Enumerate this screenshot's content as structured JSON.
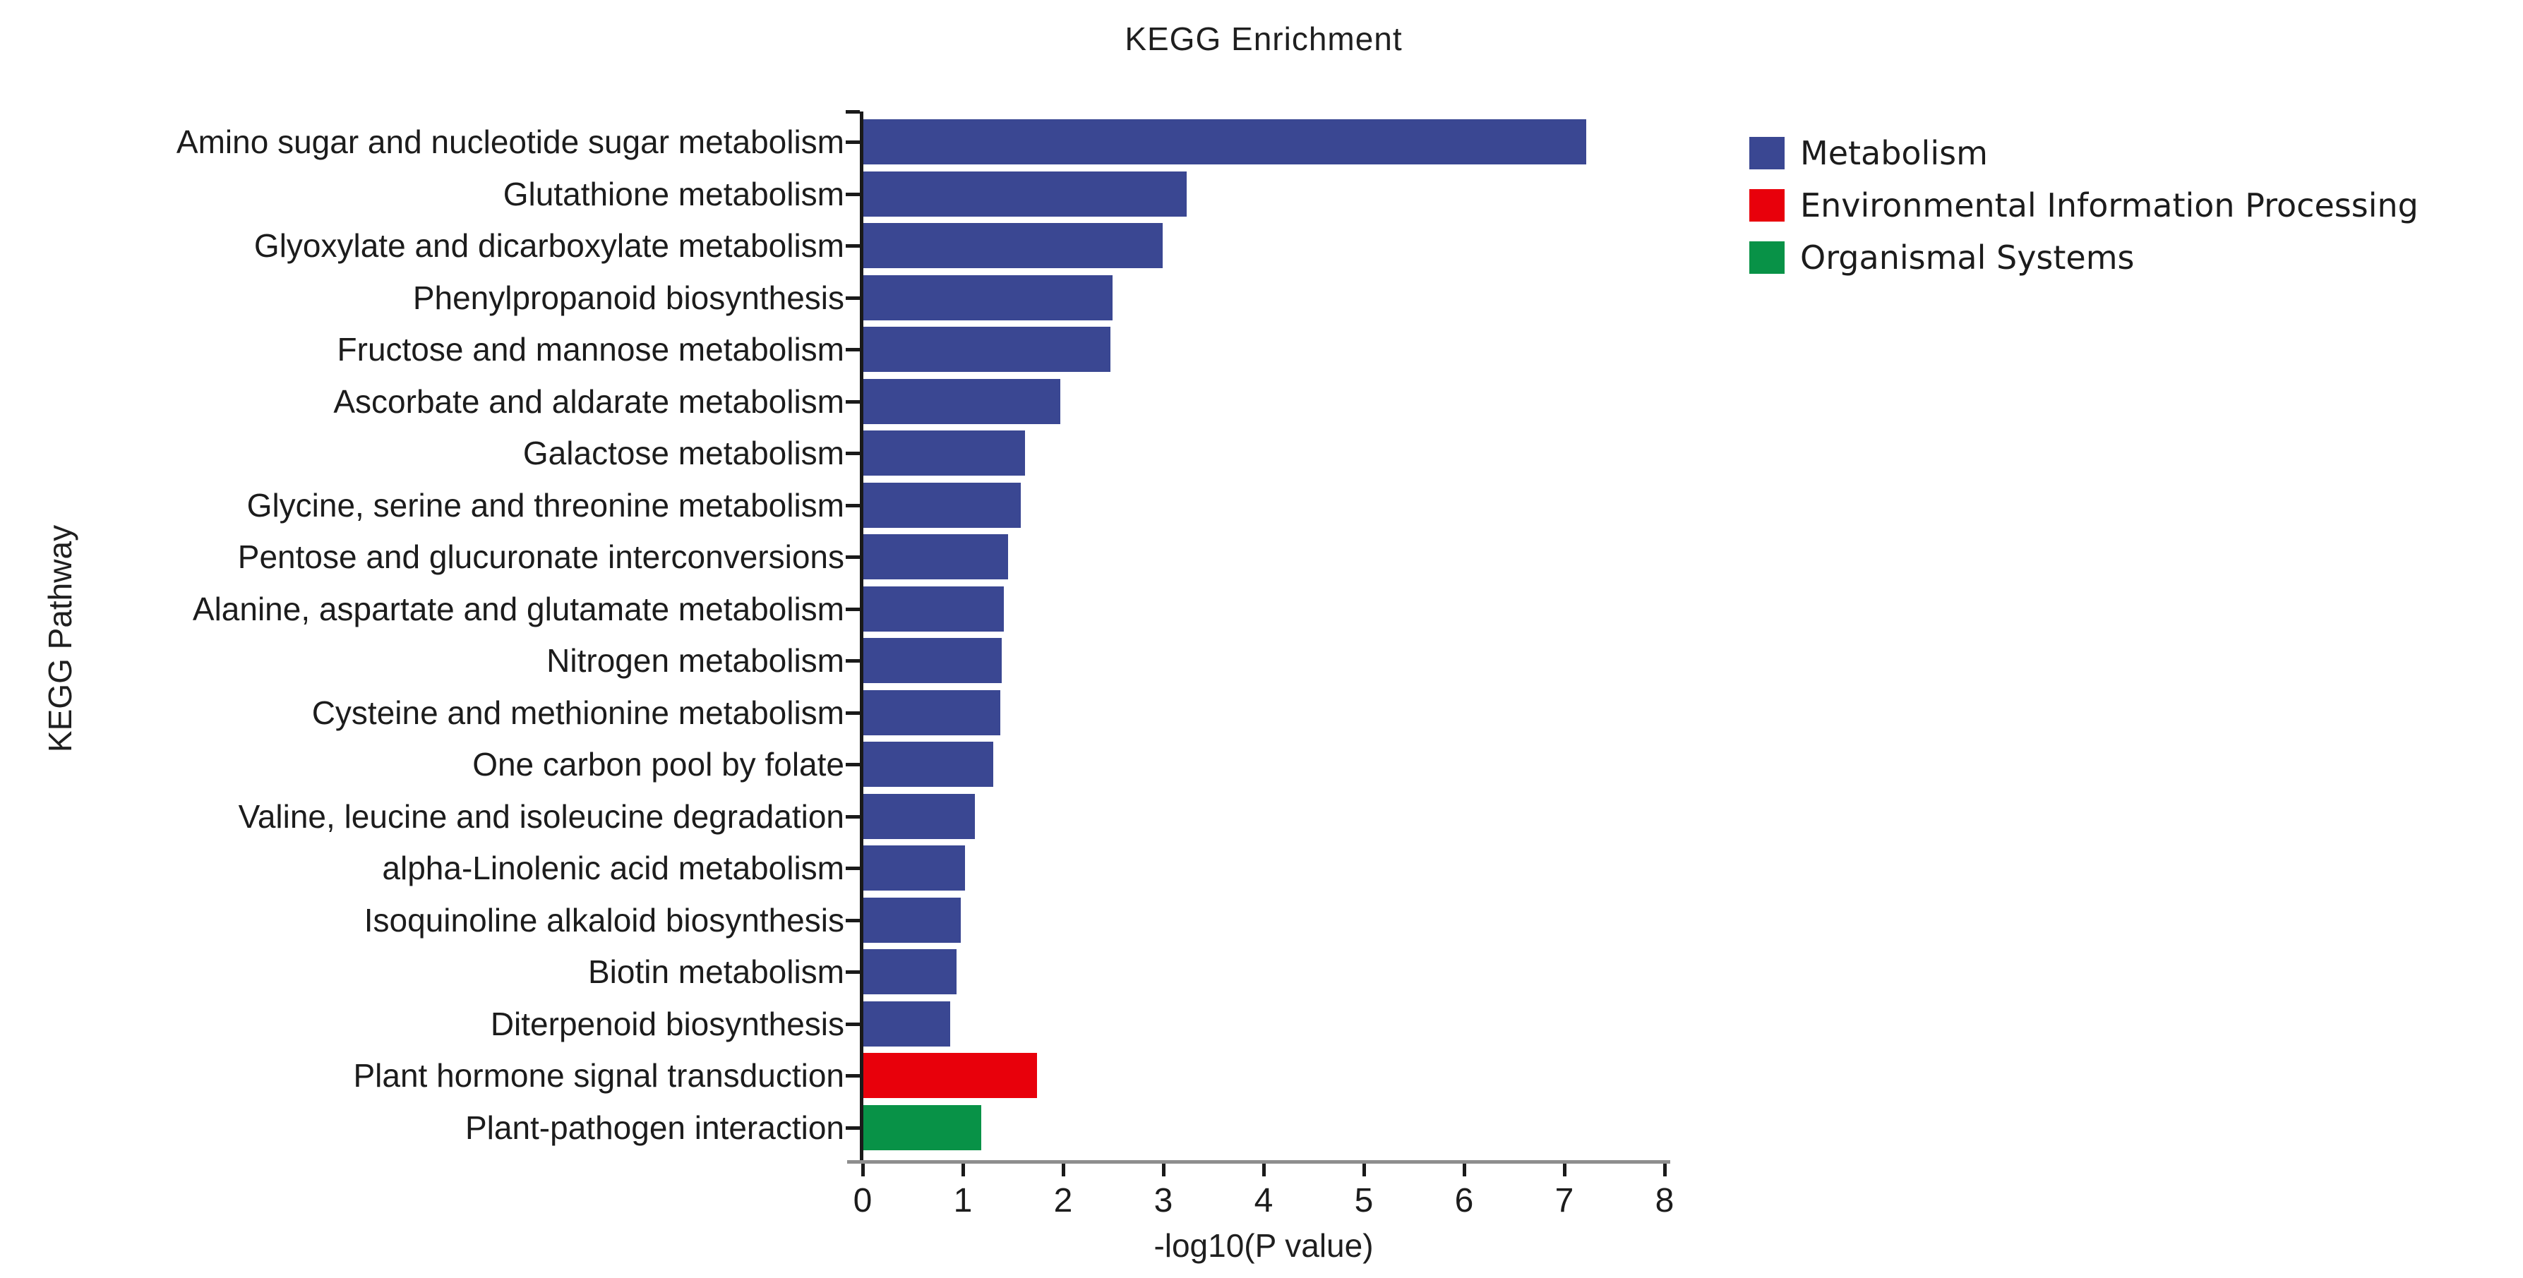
{
  "chart_data": {
    "type": "bar",
    "orientation": "horizontal",
    "title": "KEGG Enrichment",
    "xlabel": "-log10(P value)",
    "ylabel": "KEGG Pathway",
    "xlim": [
      0,
      8
    ],
    "xticks": [
      0,
      1,
      2,
      3,
      4,
      5,
      6,
      7,
      8
    ],
    "grid": false,
    "legend_position": "upper-right-outside",
    "categories": [
      "Amino sugar and nucleotide sugar metabolism",
      "Glutathione metabolism",
      "Glyoxylate and dicarboxylate metabolism",
      "Phenylpropanoid biosynthesis",
      "Fructose and mannose metabolism",
      "Ascorbate and aldarate metabolism",
      "Galactose metabolism",
      "Glycine, serine and threonine metabolism",
      "Pentose and glucuronate interconversions",
      "Alanine, aspartate and glutamate metabolism",
      "Nitrogen metabolism",
      "Cysteine and methionine metabolism",
      "One carbon pool by folate",
      "Valine, leucine and isoleucine degradation",
      "alpha-Linolenic acid metabolism",
      "Isoquinoline alkaloid biosynthesis",
      "Biotin metabolism",
      "Diterpenoid biosynthesis",
      "Plant hormone signal transduction",
      "Plant-pathogen interaction"
    ],
    "values": [
      7.22,
      3.23,
      2.99,
      2.49,
      2.47,
      1.97,
      1.62,
      1.58,
      1.45,
      1.41,
      1.39,
      1.37,
      1.3,
      1.12,
      1.02,
      0.98,
      0.94,
      0.87,
      1.74,
      1.18
    ],
    "groups": [
      "Metabolism",
      "Metabolism",
      "Metabolism",
      "Metabolism",
      "Metabolism",
      "Metabolism",
      "Metabolism",
      "Metabolism",
      "Metabolism",
      "Metabolism",
      "Metabolism",
      "Metabolism",
      "Metabolism",
      "Metabolism",
      "Metabolism",
      "Metabolism",
      "Metabolism",
      "Metabolism",
      "Environmental Information Processing",
      "Organismal Systems"
    ],
    "legend": [
      {
        "label": "Metabolism",
        "color": "#3A4792"
      },
      {
        "label": "Environmental Information Processing",
        "color": "#E8000B"
      },
      {
        "label": "Organismal Systems",
        "color": "#089247"
      }
    ],
    "group_colors": {
      "Metabolism": "#3A4792",
      "Environmental Information Processing": "#E8000B",
      "Organismal Systems": "#089247"
    },
    "axis_colors": {
      "x_line": "#8E8E8E",
      "y_line": "#1A1A1A",
      "text": "#1C1C1C"
    }
  }
}
